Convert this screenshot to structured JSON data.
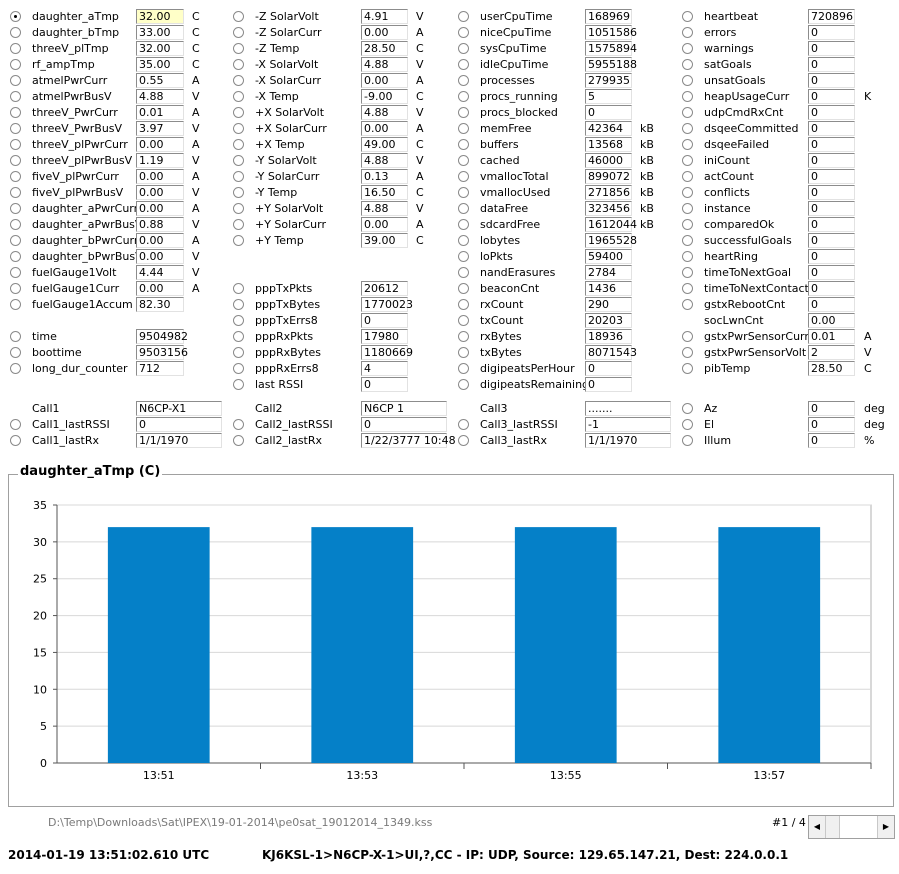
{
  "col1": [
    {
      "label": "daughter_aTmp",
      "value": "32.00",
      "unit": "C",
      "selected": true,
      "highlight": true
    },
    {
      "label": "daughter_bTmp",
      "value": "33.00",
      "unit": "C"
    },
    {
      "label": "threeV_plTmp",
      "value": "32.00",
      "unit": "C"
    },
    {
      "label": "rf_ampTmp",
      "value": "35.00",
      "unit": "C"
    },
    {
      "label": "atmelPwrCurr",
      "value": "0.55",
      "unit": "A"
    },
    {
      "label": "atmelPwrBusV",
      "value": "4.88",
      "unit": "V"
    },
    {
      "label": "threeV_PwrCurr",
      "value": "0.01",
      "unit": "A"
    },
    {
      "label": "threeV_PwrBusV",
      "value": "3.97",
      "unit": "V"
    },
    {
      "label": "threeV_plPwrCurr",
      "value": "0.00",
      "unit": "A"
    },
    {
      "label": "threeV_plPwrBusV",
      "value": "1.19",
      "unit": "V"
    },
    {
      "label": "fiveV_plPwrCurr",
      "value": "0.00",
      "unit": "A"
    },
    {
      "label": "fiveV_plPwrBusV",
      "value": "0.00",
      "unit": "V"
    },
    {
      "label": "daughter_aPwrCurr",
      "value": "0.00",
      "unit": "A"
    },
    {
      "label": "daughter_aPwrBusV",
      "value": "0.88",
      "unit": "V"
    },
    {
      "label": "daughter_bPwrCurr",
      "value": "0.00",
      "unit": "A"
    },
    {
      "label": "daughter_bPwrBusV",
      "value": "0.00",
      "unit": "V"
    },
    {
      "label": "fuelGauge1Volt",
      "value": "4.44",
      "unit": "V"
    },
    {
      "label": "fuelGauge1Curr",
      "value": "0.00",
      "unit": "A"
    },
    {
      "label": "fuelGauge1Accum",
      "value": "82.30",
      "unit": ""
    }
  ],
  "col1b": [
    {
      "label": "time",
      "value": "9504982",
      "unit": ""
    },
    {
      "label": "boottime",
      "value": "9503156",
      "unit": ""
    },
    {
      "label": "long_dur_counter",
      "value": "712",
      "unit": ""
    }
  ],
  "col2": [
    {
      "label": "-Z SolarVolt",
      "value": "4.91",
      "unit": "V"
    },
    {
      "label": "-Z SolarCurr",
      "value": "0.00",
      "unit": "A"
    },
    {
      "label": "-Z Temp",
      "value": "28.50",
      "unit": "C"
    },
    {
      "label": "-X SolarVolt",
      "value": "4.88",
      "unit": "V"
    },
    {
      "label": "-X SolarCurr",
      "value": "0.00",
      "unit": "A"
    },
    {
      "label": "-X Temp",
      "value": "-9.00",
      "unit": "C"
    },
    {
      "label": "+X SolarVolt",
      "value": "4.88",
      "unit": "V"
    },
    {
      "label": "+X SolarCurr",
      "value": "0.00",
      "unit": "A"
    },
    {
      "label": "+X Temp",
      "value": "49.00",
      "unit": "C"
    },
    {
      "label": "-Y SolarVolt",
      "value": "4.88",
      "unit": "V"
    },
    {
      "label": "-Y SolarCurr",
      "value": "0.13",
      "unit": "A"
    },
    {
      "label": "-Y Temp",
      "value": "16.50",
      "unit": "C"
    },
    {
      "label": "+Y SolarVolt",
      "value": "4.88",
      "unit": "V"
    },
    {
      "label": "+Y SolarCurr",
      "value": "0.00",
      "unit": "A"
    },
    {
      "label": "+Y Temp",
      "value": "39.00",
      "unit": "C"
    }
  ],
  "col2b": [
    {
      "label": "pppTxPkts",
      "value": "20612",
      "unit": ""
    },
    {
      "label": "pppTxBytes",
      "value": "1770023",
      "unit": ""
    },
    {
      "label": "pppTxErrs8",
      "value": "0",
      "unit": ""
    },
    {
      "label": "pppRxPkts",
      "value": "17980",
      "unit": ""
    },
    {
      "label": "pppRxBytes",
      "value": "1180669",
      "unit": ""
    },
    {
      "label": "pppRxErrs8",
      "value": "4",
      "unit": ""
    },
    {
      "label": "last RSSI",
      "value": "0",
      "unit": ""
    }
  ],
  "col3": [
    {
      "label": "userCpuTime",
      "value": "168969",
      "unit": ""
    },
    {
      "label": "niceCpuTime",
      "value": "1051586",
      "unit": ""
    },
    {
      "label": "sysCpuTime",
      "value": "1575894",
      "unit": ""
    },
    {
      "label": "idleCpuTime",
      "value": "5955188",
      "unit": ""
    },
    {
      "label": "processes",
      "value": "279935",
      "unit": ""
    },
    {
      "label": "procs_running",
      "value": "5",
      "unit": ""
    },
    {
      "label": "procs_blocked",
      "value": "0",
      "unit": ""
    },
    {
      "label": "memFree",
      "value": "42364",
      "unit": "kB"
    },
    {
      "label": "buffers",
      "value": "13568",
      "unit": "kB"
    },
    {
      "label": "cached",
      "value": "46000",
      "unit": "kB"
    },
    {
      "label": "vmallocTotal",
      "value": "899072",
      "unit": "kB"
    },
    {
      "label": "vmallocUsed",
      "value": "271856",
      "unit": "kB"
    },
    {
      "label": "dataFree",
      "value": "323456",
      "unit": "kB"
    },
    {
      "label": "sdcardFree",
      "value": "1612044",
      "unit": "kB"
    },
    {
      "label": "lobytes",
      "value": "1965528",
      "unit": ""
    },
    {
      "label": "loPkts",
      "value": "59400",
      "unit": ""
    },
    {
      "label": "nandErasures",
      "value": "2784",
      "unit": ""
    },
    {
      "label": "beaconCnt",
      "value": "1436",
      "unit": ""
    },
    {
      "label": "rxCount",
      "value": "290",
      "unit": ""
    },
    {
      "label": "txCount",
      "value": "20203",
      "unit": ""
    },
    {
      "label": "rxBytes",
      "value": "18936",
      "unit": ""
    },
    {
      "label": "txBytes",
      "value": "8071543",
      "unit": ""
    },
    {
      "label": "digipeatsPerHour",
      "value": "0",
      "unit": ""
    },
    {
      "label": "digipeatsRemaining",
      "value": "0",
      "unit": ""
    }
  ],
  "col4": [
    {
      "label": "heartbeat",
      "value": "720896",
      "unit": ""
    },
    {
      "label": "errors",
      "value": "0",
      "unit": ""
    },
    {
      "label": "warnings",
      "value": "0",
      "unit": ""
    },
    {
      "label": "satGoals",
      "value": "0",
      "unit": ""
    },
    {
      "label": "unsatGoals",
      "value": "0",
      "unit": ""
    },
    {
      "label": "heapUsageCurr",
      "value": "0",
      "unit": "K"
    },
    {
      "label": "udpCmdRxCnt",
      "value": "0",
      "unit": ""
    },
    {
      "label": "dsqeeCommitted",
      "value": "0",
      "unit": ""
    },
    {
      "label": "dsqeeFailed",
      "value": "0",
      "unit": ""
    },
    {
      "label": "iniCount",
      "value": "0",
      "unit": ""
    },
    {
      "label": "actCount",
      "value": "0",
      "unit": ""
    },
    {
      "label": "conflicts",
      "value": "0",
      "unit": ""
    },
    {
      "label": "instance",
      "value": "0",
      "unit": ""
    },
    {
      "label": "comparedOk",
      "value": "0",
      "unit": ""
    },
    {
      "label": "successfulGoals",
      "value": "0",
      "unit": ""
    },
    {
      "label": "heartRing",
      "value": "0",
      "unit": ""
    },
    {
      "label": "timeToNextGoal",
      "value": "0",
      "unit": ""
    },
    {
      "label": "timeToNextContactB",
      "value": "0",
      "unit": ""
    },
    {
      "label": "gstxRebootCnt",
      "value": "0",
      "unit": ""
    },
    {
      "label": "socLwnCnt",
      "value": "0.00",
      "unit": "",
      "noradio": true
    },
    {
      "label": "gstxPwrSensorCurr",
      "value": "0.01",
      "unit": "A"
    },
    {
      "label": "gstxPwrSensorVolt",
      "value": "2",
      "unit": "V"
    },
    {
      "label": "pibTemp",
      "value": "28.50",
      "unit": "C"
    }
  ],
  "calls": [
    {
      "call": "Call1",
      "call_value": "N6CP-X1",
      "rssi_label": "Call1_lastRSSI",
      "rssi_value": "0",
      "rx_label": "Call1_lastRx",
      "rx_value": "1/1/1970"
    },
    {
      "call": "Call2",
      "call_value": "N6CP  1",
      "rssi_label": "Call2_lastRSSI",
      "rssi_value": "0",
      "rx_label": "Call2_lastRx",
      "rx_value": "1/22/3777 10:48"
    },
    {
      "call": "Call3",
      "call_value": ".......",
      "rssi_label": "Call3_lastRSSI",
      "rssi_value": "-1",
      "rx_label": "Call3_lastRx",
      "rx_value": "1/1/1970"
    }
  ],
  "angles": [
    {
      "label": "Az",
      "value": "0",
      "unit": "deg"
    },
    {
      "label": "El",
      "value": "0",
      "unit": "deg"
    },
    {
      "label": "Illum",
      "value": "0",
      "unit": "%"
    }
  ],
  "chart_title": "daughter_aTmp (C)",
  "chart_data": {
    "type": "bar",
    "categories": [
      "13:51",
      "13:53",
      "13:55",
      "13:57"
    ],
    "values": [
      32,
      32,
      32,
      32
    ],
    "ylim": [
      0,
      35
    ],
    "yticks": [
      0,
      5,
      10,
      15,
      20,
      25,
      30,
      35
    ],
    "grid": true,
    "color": "#0580c8"
  },
  "file_path": "D:\\Temp\\Downloads\\Sat\\IPEX\\19-01-2014\\pe0sat_19012014_1349.kss",
  "page_num": "#1 / 4",
  "status": {
    "timestamp": "2014-01-19 13:51:02.610 UTC",
    "packet": "KJ6KSL-1>N6CP-X-1>UI,?,CC - IP: UDP, Source: 129.65.147.21, Dest: 224.0.0.1"
  }
}
